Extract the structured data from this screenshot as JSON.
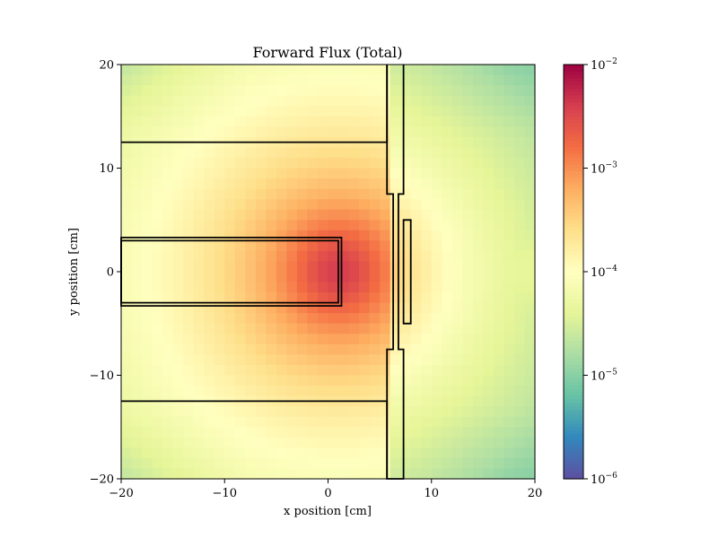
{
  "chart_data": {
    "type": "heatmap",
    "title": "Forward Flux (Total)",
    "xlabel": "x position [cm]",
    "ylabel": "y position [cm]",
    "xlim": [
      -20,
      20
    ],
    "ylim": [
      -20,
      20
    ],
    "xticks": [
      -20,
      -10,
      0,
      10,
      20
    ],
    "yticks": [
      -20,
      -10,
      0,
      10,
      20
    ],
    "xtick_labels": [
      "−20",
      "−10",
      "0",
      "10",
      "20"
    ],
    "ytick_labels": [
      "−20",
      "−10",
      "0",
      "10",
      "20"
    ],
    "grid": {
      "nx": 40,
      "ny": 40
    },
    "colorbar": {
      "scale": "log",
      "min": 1e-06,
      "max": 0.01,
      "colormap": "Spectral_r",
      "ticks": [
        {
          "value": 1e-06,
          "base": "10",
          "exp": "−6"
        },
        {
          "value": 1e-05,
          "base": "10",
          "exp": "−5"
        },
        {
          "value": 0.0001,
          "base": "10",
          "exp": "−4"
        },
        {
          "value": 0.001,
          "base": "10",
          "exp": "−3"
        },
        {
          "value": 0.01,
          "base": "10",
          "exp": "−2"
        }
      ]
    },
    "field": {
      "source_xy": [
        1.0,
        0.0
      ],
      "peak_value": 0.004,
      "edge_value": 1.5e-05,
      "corner_value": 2e-05,
      "shield_x_start": 6.0,
      "shield_attenuation": 0.35
    },
    "geometry_cm": {
      "upper_block": [
        [
          -20,
          12.5
        ],
        [
          5.7,
          12.5
        ],
        [
          5.7,
          20
        ]
      ],
      "lower_block": [
        [
          -20,
          -12.5
        ],
        [
          5.7,
          -12.5
        ],
        [
          5.7,
          -20
        ]
      ],
      "channel_outer": [
        [
          -20,
          3.3
        ],
        [
          1.3,
          3.3
        ],
        [
          1.3,
          -3.3
        ],
        [
          -20,
          -3.3
        ]
      ],
      "channel_inner": [
        [
          -20,
          3.0
        ],
        [
          1.0,
          3.0
        ],
        [
          1.0,
          -3.0
        ],
        [
          -20,
          -3.0
        ]
      ],
      "slit_wall": [
        [
          5.7,
          20
        ],
        [
          5.7,
          7.5
        ],
        [
          6.3,
          7.5
        ],
        [
          6.3,
          -7.5
        ],
        [
          5.7,
          -7.5
        ],
        [
          5.7,
          -20
        ],
        [
          7.3,
          -20
        ],
        [
          7.3,
          -7.5
        ],
        [
          6.8,
          -7.5
        ],
        [
          6.8,
          7.5
        ],
        [
          7.3,
          7.5
        ],
        [
          7.3,
          20
        ]
      ],
      "target": [
        [
          7.3,
          5.0
        ],
        [
          8.0,
          5.0
        ],
        [
          8.0,
          -5.0
        ],
        [
          7.3,
          -5.0
        ]
      ]
    }
  }
}
